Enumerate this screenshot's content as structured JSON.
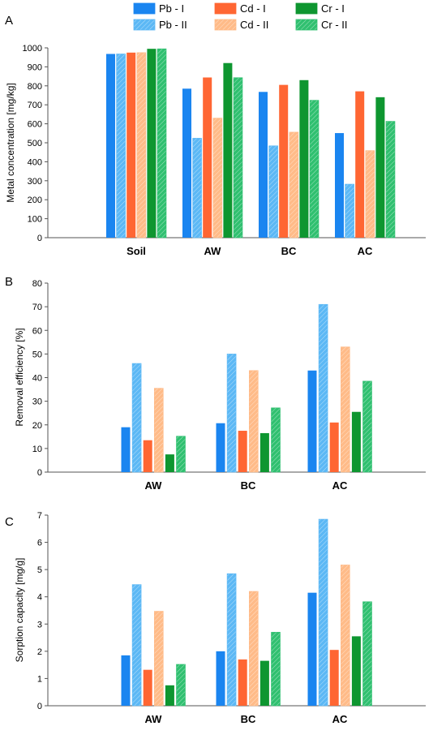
{
  "legend": {
    "items": [
      {
        "label": "Pb - I",
        "color": "#1a85f0",
        "hatch": false
      },
      {
        "label": "Cd - I",
        "color": "#ff6633",
        "hatch": false
      },
      {
        "label": "Cr - I",
        "color": "#0e9630",
        "hatch": false
      },
      {
        "label": "Pb - II",
        "color": "#5cb8f5",
        "hatch": true
      },
      {
        "label": "Cd - II",
        "color": "#ffbb88",
        "hatch": true
      },
      {
        "label": "Cr - II",
        "color": "#30c070",
        "hatch": true
      }
    ]
  },
  "chart_data": [
    {
      "panel": "A",
      "type": "bar",
      "ylabel": "Metal concentration [mg/kg]",
      "ylim": [
        0,
        1000
      ],
      "yticks": [
        0,
        100,
        200,
        300,
        400,
        500,
        600,
        700,
        800,
        900,
        1000
      ],
      "categories": [
        "Soil",
        "AW",
        "BC",
        "AC"
      ],
      "series": [
        {
          "name": "Pb - I",
          "values": [
            968,
            785,
            768,
            551
          ]
        },
        {
          "name": "Pb - II",
          "values": [
            968,
            524,
            484,
            282
          ]
        },
        {
          "name": "Cd - I",
          "values": [
            975,
            844,
            805,
            771
          ]
        },
        {
          "name": "Cd - II",
          "values": [
            975,
            630,
            556,
            459
          ]
        },
        {
          "name": "Cr - I",
          "values": [
            995,
            920,
            830,
            740
          ]
        },
        {
          "name": "Cr - II",
          "values": [
            995,
            843,
            724,
            613
          ]
        }
      ]
    },
    {
      "panel": "B",
      "type": "bar",
      "ylabel": "Removal efficiency [%]",
      "ylim": [
        0,
        80
      ],
      "yticks": [
        0,
        10,
        20,
        30,
        40,
        50,
        60,
        70,
        80
      ],
      "categories": [
        "AW",
        "BC",
        "AC"
      ],
      "series": [
        {
          "name": "Pb - I",
          "values": [
            19,
            20.7,
            43
          ]
        },
        {
          "name": "Pb - II",
          "values": [
            46,
            50,
            71
          ]
        },
        {
          "name": "Cd - I",
          "values": [
            13.5,
            17.5,
            21
          ]
        },
        {
          "name": "Cd - II",
          "values": [
            35.5,
            43,
            53
          ]
        },
        {
          "name": "Cr - I",
          "values": [
            7.5,
            16.5,
            25.5
          ]
        },
        {
          "name": "Cr - II",
          "values": [
            15.2,
            27.2,
            38.5
          ]
        }
      ]
    },
    {
      "panel": "C",
      "type": "bar",
      "ylabel": "Sorption capacity [mg/g]",
      "ylim": [
        0,
        7
      ],
      "yticks": [
        0,
        1,
        2,
        3,
        4,
        5,
        6,
        7
      ],
      "categories": [
        "AW",
        "BC",
        "AC"
      ],
      "series": [
        {
          "name": "Pb - I",
          "values": [
            1.85,
            2.0,
            4.15
          ]
        },
        {
          "name": "Pb - II",
          "values": [
            4.45,
            4.85,
            6.85
          ]
        },
        {
          "name": "Cd - I",
          "values": [
            1.32,
            1.7,
            2.05
          ]
        },
        {
          "name": "Cd - II",
          "values": [
            3.47,
            4.2,
            5.17
          ]
        },
        {
          "name": "Cr - I",
          "values": [
            0.75,
            1.65,
            2.55
          ]
        },
        {
          "name": "Cr - II",
          "values": [
            1.52,
            2.7,
            3.82
          ]
        }
      ]
    }
  ]
}
